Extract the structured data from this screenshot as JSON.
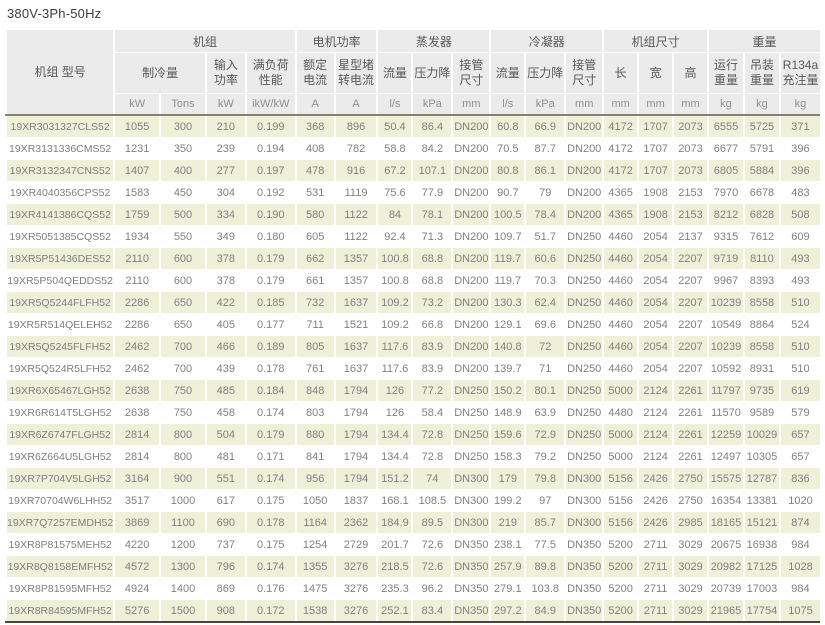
{
  "title": "380V-3Ph-50Hz",
  "table": {
    "model_header": "机组\n型号",
    "groups": [
      "机组",
      "电机功率",
      "蒸发器",
      "冷凝器",
      "机组尺寸",
      "重量"
    ],
    "subheaders": [
      "制冷量",
      "输入\n功率",
      "满负荷\n性能",
      "额定\n电流",
      "星型堵\n转电流",
      "流量",
      "压力降",
      "接管\n尺寸",
      "流量",
      "压力降",
      "接管\n尺寸",
      "长",
      "宽",
      "高",
      "运行\n重量",
      "吊装\n重量",
      "R134a\n充注量"
    ],
    "units": [
      "kW",
      "Tons",
      "kW",
      "ikW/kW",
      "A",
      "A",
      "l/s",
      "kPa",
      "mm",
      "l/s",
      "kPa",
      "mm",
      "mm",
      "mm",
      "mm",
      "kg",
      "kg",
      "kg"
    ],
    "rows": [
      [
        "19XR3031327CLS52",
        "1055",
        "300",
        "210",
        "0.199",
        "368",
        "896",
        "50.4",
        "86.4",
        "DN200",
        "60.8",
        "66.9",
        "DN200",
        "4172",
        "1707",
        "2073",
        "6555",
        "5725",
        "371"
      ],
      [
        "19XR3131336CMS52",
        "1231",
        "350",
        "239",
        "0.194",
        "408",
        "782",
        "58.8",
        "84.2",
        "DN200",
        "70.5",
        "87.7",
        "DN200",
        "4172",
        "1707",
        "2073",
        "6677",
        "5791",
        "396"
      ],
      [
        "19XR3132347CNS52",
        "1407",
        "400",
        "277",
        "0.197",
        "478",
        "916",
        "67.2",
        "107.1",
        "DN200",
        "80.8",
        "86.1",
        "DN200",
        "4172",
        "1707",
        "2073",
        "6805",
        "5884",
        "396"
      ],
      [
        "19XR4040356CPS52",
        "1583",
        "450",
        "304",
        "0.192",
        "531",
        "1119",
        "75.6",
        "77.9",
        "DN200",
        "90.7",
        "79",
        "DN200",
        "4365",
        "1908",
        "2153",
        "7970",
        "6678",
        "483"
      ],
      [
        "19XR4141386CQS52",
        "1759",
        "500",
        "334",
        "0.190",
        "580",
        "1122",
        "84",
        "78.1",
        "DN200",
        "100.5",
        "78.4",
        "DN200",
        "4365",
        "1908",
        "2153",
        "8212",
        "6828",
        "508"
      ],
      [
        "19XR5051385CQS52",
        "1934",
        "550",
        "349",
        "0.180",
        "605",
        "1122",
        "92.4",
        "71.3",
        "DN200",
        "109.7",
        "51.7",
        "DN250",
        "4460",
        "2054",
        "2137",
        "9315",
        "7612",
        "609"
      ],
      [
        "19XR5P51436DES52",
        "2110",
        "600",
        "378",
        "0.179",
        "662",
        "1357",
        "100.8",
        "68.8",
        "DN200",
        "119.7",
        "60.6",
        "DN250",
        "4460",
        "2054",
        "2207",
        "9719",
        "8110",
        "493"
      ],
      [
        "19XR5P504QEDDS52",
        "2110",
        "600",
        "378",
        "0.179",
        "661",
        "1357",
        "100.8",
        "68.8",
        "DN200",
        "119.7",
        "70.3",
        "DN250",
        "4460",
        "2054",
        "2207",
        "9967",
        "8393",
        "493"
      ],
      [
        "19XR5Q5244FLFH52",
        "2286",
        "650",
        "422",
        "0.185",
        "732",
        "1637",
        "109.2",
        "73.2",
        "DN200",
        "130.3",
        "62.4",
        "DN250",
        "4460",
        "2054",
        "2207",
        "10239",
        "8558",
        "510"
      ],
      [
        "19XR5R514QELEH52",
        "2286",
        "650",
        "405",
        "0.177",
        "711",
        "1521",
        "109.2",
        "66.8",
        "DN200",
        "129.1",
        "69.6",
        "DN250",
        "4460",
        "2054",
        "2207",
        "10549",
        "8864",
        "524"
      ],
      [
        "19XR5Q5245FLFH52",
        "2462",
        "700",
        "466",
        "0.189",
        "805",
        "1637",
        "117.6",
        "83.9",
        "DN200",
        "140.8",
        "72",
        "DN250",
        "4460",
        "2054",
        "2207",
        "10239",
        "8558",
        "510"
      ],
      [
        "19XR5Q524R5LFH52",
        "2462",
        "700",
        "439",
        "0.178",
        "761",
        "1637",
        "117.6",
        "83.9",
        "DN200",
        "139.7",
        "71",
        "DN250",
        "4460",
        "2054",
        "2207",
        "10592",
        "8931",
        "510"
      ],
      [
        "19XR6X65467LGH52",
        "2638",
        "750",
        "485",
        "0.184",
        "848",
        "1794",
        "126",
        "77.2",
        "DN250",
        "150.2",
        "80.1",
        "DN250",
        "5000",
        "2124",
        "2261",
        "11797",
        "9735",
        "619"
      ],
      [
        "19XR6R614T5LGH52",
        "2638",
        "750",
        "458",
        "0.174",
        "803",
        "1794",
        "126",
        "58.4",
        "DN250",
        "148.9",
        "63.9",
        "DN250",
        "4480",
        "2124",
        "2261",
        "11570",
        "9589",
        "579"
      ],
      [
        "19XR6Z6747FLGH52",
        "2814",
        "800",
        "504",
        "0.179",
        "880",
        "1794",
        "134.4",
        "72.8",
        "DN250",
        "159.6",
        "72.9",
        "DN250",
        "5000",
        "2124",
        "2261",
        "12259",
        "10029",
        "657"
      ],
      [
        "19XR6Z664U5LGH52",
        "2814",
        "800",
        "481",
        "0.171",
        "841",
        "1794",
        "134.4",
        "72.8",
        "DN250",
        "158.3",
        "79.2",
        "DN250",
        "5000",
        "2124",
        "2261",
        "12497",
        "10305",
        "657"
      ],
      [
        "19XR7P704V5LGH52",
        "3164",
        "900",
        "551",
        "0.174",
        "956",
        "1794",
        "151.2",
        "74",
        "DN300",
        "179",
        "79.8",
        "DN300",
        "5156",
        "2426",
        "2750",
        "15575",
        "12787",
        "836"
      ],
      [
        "19XR70704W6LHH52",
        "3517",
        "1000",
        "617",
        "0.175",
        "1050",
        "1837",
        "168.1",
        "108.5",
        "DN300",
        "199.2",
        "97",
        "DN300",
        "5156",
        "2426",
        "2750",
        "16354",
        "13381",
        "1020"
      ],
      [
        "19XR7Q7257EMDH52",
        "3869",
        "1100",
        "690",
        "0.178",
        "1164",
        "2362",
        "184.9",
        "89.5",
        "DN300",
        "219",
        "85.7",
        "DN300",
        "5156",
        "2426",
        "2985",
        "18165",
        "15121",
        "874"
      ],
      [
        "19XR8P81575MEH52",
        "4220",
        "1200",
        "737",
        "0.175",
        "1254",
        "2729",
        "201.7",
        "72.6",
        "DN350",
        "238.1",
        "77.5",
        "DN350",
        "5200",
        "2711",
        "3029",
        "20675",
        "16938",
        "984"
      ],
      [
        "19XR8Q8158EMFH52",
        "4572",
        "1300",
        "796",
        "0.174",
        "1355",
        "3276",
        "218.5",
        "72.6",
        "DN350",
        "257.9",
        "89.8",
        "DN350",
        "5200",
        "2711",
        "3029",
        "20982",
        "17125",
        "1028"
      ],
      [
        "19XR8P81595MFH52",
        "4924",
        "1400",
        "869",
        "0.176",
        "1475",
        "3276",
        "235.3",
        "96.2",
        "DN350",
        "279.1",
        "103.8",
        "DN350",
        "5200",
        "2711",
        "3029",
        "20739",
        "17003",
        "984"
      ],
      [
        "19XR8R84595MFH52",
        "5276",
        "1500",
        "908",
        "0.172",
        "1538",
        "3276",
        "252.1",
        "83.4",
        "DN350",
        "297.2",
        "84.9",
        "DN350",
        "5200",
        "2711",
        "3029",
        "21965",
        "17754",
        "1075"
      ]
    ]
  }
}
